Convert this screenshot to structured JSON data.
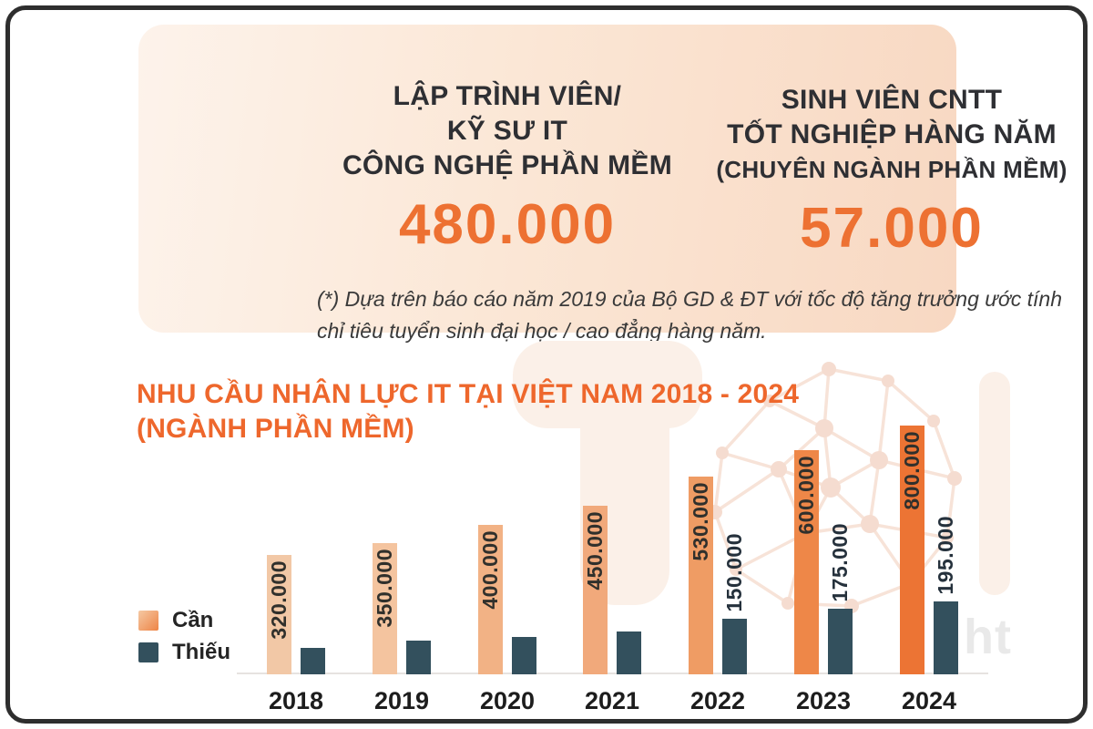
{
  "panel": {
    "stats": [
      {
        "heading_lines": [
          "LẬP TRÌNH VIÊN/",
          "KỸ SƯ IT",
          "CÔNG NGHỆ PHẦN MỀM"
        ],
        "value": "480.000"
      },
      {
        "heading_lines": [
          "SINH VIÊN CNTT",
          "TỐT NGHIỆP HÀNG NĂM",
          "(CHUYÊN NGÀNH PHẦN MỀM)"
        ],
        "value": "57.000"
      }
    ],
    "footnote": "(*) Dựa trên báo cáo năm 2019 của Bộ GD & ĐT với tốc độ tăng trưởng ước tính chỉ tiêu tuyển sinh đại học / cao đẳng hàng năm."
  },
  "chart": {
    "title_line1": "NHU CẦU NHÂN LỰC IT TẠI VIỆT NAM 2018 - 2024",
    "title_line2": "(NGÀNH PHẦN MỀM)"
  },
  "chart_data": {
    "type": "bar",
    "title": "NHU CẦU NHÂN LỰC IT TẠI VIỆT NAM 2018 - 2024 (NGÀNH PHẦN MỀM)",
    "categories": [
      "2018",
      "2019",
      "2020",
      "2021",
      "2022",
      "2023",
      "2024"
    ],
    "series": [
      {
        "name": "Cần",
        "values": [
          320000,
          350000,
          400000,
          450000,
          530000,
          600000,
          800000
        ],
        "labels": [
          "320.000",
          "350.000",
          "400.000",
          "450.000",
          "530.000",
          "600.000",
          "800.000"
        ],
        "bar_colors": [
          "#F2C8A6",
          "#F4C49F",
          "#F2B285",
          "#F1A97B",
          "#EF9C64",
          "#EE8748",
          "#EC7434"
        ]
      },
      {
        "name": "Thiếu",
        "values": [
          70000,
          90000,
          100000,
          115000,
          150000,
          175000,
          195000
        ],
        "values_estimated_from_pixels": [
          true,
          true,
          true,
          true,
          false,
          false,
          false
        ],
        "labels": [
          "",
          "",
          "",
          "",
          "150.000",
          "175.000",
          "195.000"
        ],
        "color": "#33505D"
      }
    ],
    "legend_position": "bottom-left",
    "grid": false,
    "ylim": [
      0,
      800000
    ]
  },
  "watermark": {
    "partial_url_text": "ht"
  },
  "colors": {
    "accent_orange": "#EE672C",
    "stat_value_orange": "#ED7132",
    "panel_gradient_start": "#FDF3EB",
    "panel_gradient_end": "#F8D8C2",
    "bar_dark_slate": "#33505D",
    "frame_dark": "#2E2E2E",
    "axis_gray": "#E6E3E0",
    "watermark_peach": "#FBF0E8"
  }
}
